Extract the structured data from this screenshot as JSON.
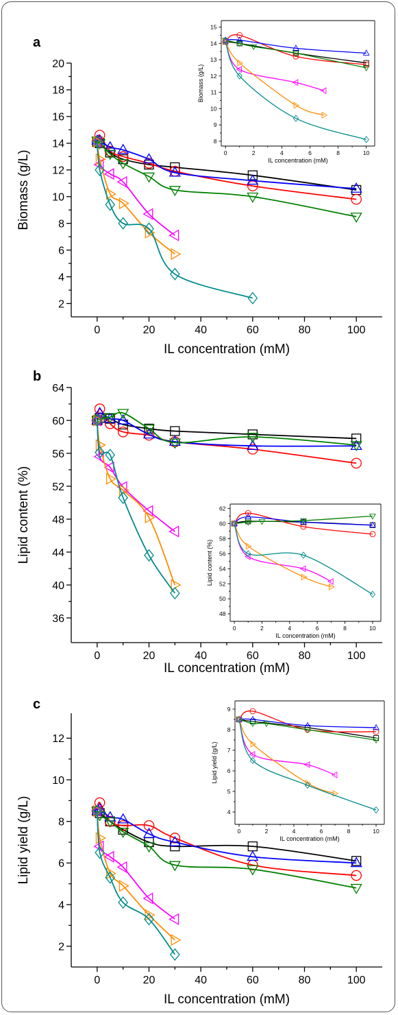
{
  "figure": {
    "panel_labels": [
      "a",
      "b",
      "c"
    ]
  },
  "chart_data": [
    {
      "type": "line",
      "panel": "a",
      "xlabel": "IL concentration (mM)",
      "ylabel": "Biomass (g/L)",
      "xlim": [
        -10,
        110
      ],
      "ylim": [
        1,
        20
      ],
      "xticks": [
        0,
        20,
        40,
        60,
        80,
        100
      ],
      "yticks": [
        2,
        4,
        6,
        8,
        10,
        12,
        14,
        16,
        18,
        20
      ],
      "series": [
        {
          "color": "#000000",
          "marker": "square",
          "x": [
            0,
            1,
            5,
            10,
            20,
            30,
            60,
            100
          ],
          "y": [
            14.1,
            14.0,
            13.3,
            12.8,
            12.4,
            12.2,
            11.6,
            10.5
          ]
        },
        {
          "color": "#ff0000",
          "marker": "circle",
          "x": [
            0,
            1,
            5,
            10,
            20,
            30,
            60,
            100
          ],
          "y": [
            14.1,
            14.6,
            13.4,
            13.0,
            12.5,
            11.9,
            10.8,
            9.8
          ]
        },
        {
          "color": "#0000ff",
          "marker": "triangle-up",
          "x": [
            0,
            1,
            5,
            10,
            20,
            30,
            60,
            100
          ],
          "y": [
            14.2,
            14.2,
            13.7,
            13.5,
            12.8,
            11.8,
            11.2,
            10.6
          ]
        },
        {
          "color": "#008000",
          "marker": "triangle-down",
          "x": [
            0,
            1,
            5,
            10,
            20,
            30,
            60,
            100
          ],
          "y": [
            14.2,
            14.0,
            13.2,
            12.5,
            11.5,
            10.5,
            10.0,
            8.5
          ]
        },
        {
          "color": "#ff00ff",
          "marker": "triangle-left",
          "x": [
            0,
            1,
            5,
            10,
            20,
            30
          ],
          "y": [
            14.1,
            12.4,
            11.7,
            11.1,
            8.7,
            7.1
          ]
        },
        {
          "color": "#ff8c00",
          "marker": "triangle-right",
          "x": [
            0,
            1,
            5,
            10,
            20,
            30
          ],
          "y": [
            14.1,
            12.8,
            10.2,
            9.5,
            7.3,
            5.7
          ]
        },
        {
          "color": "#008b8b",
          "marker": "diamond",
          "x": [
            0,
            1,
            5,
            10,
            20,
            30,
            60
          ],
          "y": [
            14.1,
            12.0,
            9.4,
            8.0,
            7.6,
            4.2,
            2.4
          ]
        }
      ],
      "inset": {
        "xlabel": "IL concentration (mM)",
        "ylabel": "Biomass (g/L)",
        "xlim": [
          -0.3,
          10.6
        ],
        "ylim": [
          7.7,
          15.4
        ],
        "xticks": [
          0,
          2,
          4,
          6,
          8,
          10
        ],
        "yticks": [
          8,
          9,
          10,
          11,
          12,
          13,
          14,
          15
        ],
        "series": [
          {
            "color": "#000000",
            "marker": "square",
            "x": [
              0,
              1,
              5,
              10
            ],
            "y": [
              14.1,
              14.0,
              13.4,
              12.8
            ]
          },
          {
            "color": "#ff0000",
            "marker": "circle",
            "x": [
              0,
              1,
              5,
              10
            ],
            "y": [
              14.1,
              14.5,
              13.2,
              12.7
            ]
          },
          {
            "color": "#0000ff",
            "marker": "triangle-up",
            "x": [
              0,
              1,
              5,
              10
            ],
            "y": [
              14.2,
              14.2,
              13.7,
              13.4
            ]
          },
          {
            "color": "#008000",
            "marker": "triangle-down",
            "x": [
              0,
              1,
              2,
              5,
              10
            ],
            "y": [
              14.2,
              14.0,
              13.8,
              13.4,
              12.5
            ]
          },
          {
            "color": "#ff00ff",
            "marker": "triangle-left",
            "x": [
              0,
              1,
              5,
              7
            ],
            "y": [
              14.1,
              12.4,
              11.6,
              11.1
            ]
          },
          {
            "color": "#ff8c00",
            "marker": "triangle-right",
            "x": [
              0,
              1,
              5,
              7
            ],
            "y": [
              14.1,
              12.8,
              10.2,
              9.6
            ]
          },
          {
            "color": "#008b8b",
            "marker": "diamond",
            "x": [
              0,
              1,
              5,
              10
            ],
            "y": [
              14.1,
              12.0,
              9.4,
              8.1
            ]
          }
        ]
      }
    },
    {
      "type": "line",
      "panel": "b",
      "xlabel": "IL concentration (mM)",
      "ylabel": "Lipid content (%)",
      "xlim": [
        -10,
        110
      ],
      "ylim": [
        33,
        64
      ],
      "xticks": [
        0,
        20,
        40,
        60,
        80,
        100
      ],
      "yticks": [
        36,
        40,
        44,
        48,
        52,
        56,
        60,
        64
      ],
      "series": [
        {
          "color": "#000000",
          "marker": "square",
          "x": [
            0,
            1,
            5,
            10,
            20,
            30,
            60,
            100
          ],
          "y": [
            60.0,
            60.3,
            60.2,
            59.5,
            59.0,
            58.7,
            58.3,
            57.8
          ]
        },
        {
          "color": "#ff0000",
          "marker": "circle",
          "x": [
            0,
            1,
            5,
            10,
            20,
            30,
            60,
            100
          ],
          "y": [
            60.0,
            61.4,
            59.6,
            58.6,
            58.2,
            57.4,
            56.5,
            54.8
          ]
        },
        {
          "color": "#0000ff",
          "marker": "triangle-up",
          "x": [
            0,
            1,
            5,
            10,
            20,
            30,
            60,
            100
          ],
          "y": [
            60.0,
            60.9,
            60.2,
            60.0,
            58.3,
            57.4,
            56.9,
            56.9
          ]
        },
        {
          "color": "#008000",
          "marker": "triangle-down",
          "x": [
            0,
            1,
            5,
            10,
            20,
            30,
            60,
            100
          ],
          "y": [
            60.0,
            60.2,
            60.4,
            60.9,
            59.0,
            57.3,
            58.0,
            57.0
          ]
        },
        {
          "color": "#ff00ff",
          "marker": "triangle-left",
          "x": [
            0,
            1,
            5,
            10,
            20,
            30
          ],
          "y": [
            60.0,
            55.6,
            54.3,
            51.9,
            49.0,
            46.5
          ]
        },
        {
          "color": "#ff8c00",
          "marker": "triangle-right",
          "x": [
            0,
            1,
            5,
            10,
            20,
            30
          ],
          "y": [
            60.0,
            57.0,
            52.9,
            51.5,
            48.2,
            40.0
          ]
        },
        {
          "color": "#008b8b",
          "marker": "diamond",
          "x": [
            0,
            1,
            5,
            10,
            20,
            30
          ],
          "y": [
            60.0,
            56.1,
            55.8,
            50.6,
            43.6,
            39.0
          ]
        }
      ],
      "inset": {
        "xlabel": "IL concentration (mM)",
        "ylabel": "Lipid content (%)",
        "xlim": [
          -0.3,
          10.6
        ],
        "ylim": [
          47,
          62.6
        ],
        "xticks": [
          0,
          2,
          4,
          6,
          8,
          10
        ],
        "yticks": [
          48,
          50,
          52,
          54,
          56,
          58,
          60,
          62
        ],
        "series": [
          {
            "color": "#000000",
            "marker": "square",
            "x": [
              0,
              1,
              5,
              10
            ],
            "y": [
              60.0,
              60.3,
              60.2,
              59.8
            ]
          },
          {
            "color": "#ff0000",
            "marker": "circle",
            "x": [
              0,
              1,
              5,
              10
            ],
            "y": [
              60.0,
              61.4,
              59.6,
              58.6
            ]
          },
          {
            "color": "#0000ff",
            "marker": "triangle-up",
            "x": [
              0,
              1,
              5,
              10
            ],
            "y": [
              60.0,
              60.9,
              60.2,
              59.8
            ]
          },
          {
            "color": "#008000",
            "marker": "triangle-down",
            "x": [
              0,
              1,
              2,
              5,
              10
            ],
            "y": [
              60.0,
              60.2,
              60.3,
              60.4,
              61.0
            ]
          },
          {
            "color": "#ff00ff",
            "marker": "triangle-left",
            "x": [
              0,
              1,
              5,
              7
            ],
            "y": [
              60.0,
              55.6,
              54.0,
              52.3
            ]
          },
          {
            "color": "#ff8c00",
            "marker": "triangle-right",
            "x": [
              0,
              1,
              5,
              7
            ],
            "y": [
              60.0,
              57.0,
              52.9,
              51.6
            ]
          },
          {
            "color": "#008b8b",
            "marker": "diamond",
            "x": [
              0,
              1,
              5,
              10
            ],
            "y": [
              60.0,
              56.0,
              55.8,
              50.6
            ]
          }
        ]
      }
    },
    {
      "type": "line",
      "panel": "c",
      "xlabel": "IL concentration (mM)",
      "ylabel": "Lipid yield (g/L)",
      "xlim": [
        -10,
        110
      ],
      "ylim": [
        1.0,
        13.2
      ],
      "xticks": [
        0,
        20,
        40,
        60,
        80,
        100
      ],
      "yticks": [
        2,
        4,
        6,
        8,
        10,
        12
      ],
      "series": [
        {
          "color": "#000000",
          "marker": "square",
          "x": [
            0,
            1,
            5,
            10,
            20,
            30,
            60,
            100
          ],
          "y": [
            8.5,
            8.4,
            8.0,
            7.6,
            7.0,
            6.8,
            6.8,
            6.1
          ]
        },
        {
          "color": "#ff0000",
          "marker": "circle",
          "x": [
            0,
            1,
            5,
            10,
            20,
            30,
            60,
            100
          ],
          "y": [
            8.5,
            8.9,
            8.0,
            7.8,
            7.8,
            7.2,
            5.9,
            5.4
          ]
        },
        {
          "color": "#0000ff",
          "marker": "triangle-up",
          "x": [
            0,
            1,
            5,
            10,
            20,
            30,
            60,
            100
          ],
          "y": [
            8.5,
            8.6,
            8.2,
            8.1,
            7.4,
            7.0,
            6.3,
            6.0
          ]
        },
        {
          "color": "#008000",
          "marker": "triangle-down",
          "x": [
            0,
            1,
            5,
            10,
            20,
            30,
            60,
            100
          ],
          "y": [
            8.5,
            8.3,
            8.0,
            7.5,
            6.8,
            5.9,
            5.7,
            4.8
          ]
        },
        {
          "color": "#ff00ff",
          "marker": "triangle-left",
          "x": [
            0,
            1,
            5,
            10,
            20,
            30
          ],
          "y": [
            8.5,
            6.8,
            6.3,
            5.8,
            4.3,
            3.3
          ]
        },
        {
          "color": "#ff8c00",
          "marker": "triangle-right",
          "x": [
            0,
            1,
            5,
            10,
            20,
            30
          ],
          "y": [
            8.5,
            7.2,
            5.5,
            4.9,
            3.5,
            2.3
          ]
        },
        {
          "color": "#008b8b",
          "marker": "diamond",
          "x": [
            0,
            1,
            5,
            10,
            20,
            30
          ],
          "y": [
            8.5,
            6.5,
            5.3,
            4.1,
            3.3,
            1.6
          ]
        }
      ],
      "inset": {
        "xlabel": "IL concentration (mM)",
        "ylabel": "Lipid yield (g/L)",
        "xlim": [
          -0.3,
          10.6
        ],
        "ylim": [
          3.4,
          9.4
        ],
        "xticks": [
          0,
          2,
          4,
          6,
          8,
          10
        ],
        "yticks": [
          4,
          5,
          6,
          7,
          8,
          9
        ],
        "series": [
          {
            "color": "#000000",
            "marker": "square",
            "x": [
              0,
              1,
              5,
              10
            ],
            "y": [
              8.5,
              8.4,
              8.1,
              7.6
            ]
          },
          {
            "color": "#ff0000",
            "marker": "circle",
            "x": [
              0,
              1,
              5,
              10
            ],
            "y": [
              8.5,
              8.9,
              8.0,
              7.9
            ]
          },
          {
            "color": "#0000ff",
            "marker": "triangle-up",
            "x": [
              0,
              1,
              5,
              10
            ],
            "y": [
              8.5,
              8.5,
              8.2,
              8.1
            ]
          },
          {
            "color": "#008000",
            "marker": "triangle-down",
            "x": [
              0,
              1,
              2,
              5,
              10
            ],
            "y": [
              8.5,
              8.3,
              8.3,
              8.0,
              7.5
            ]
          },
          {
            "color": "#ff00ff",
            "marker": "triangle-left",
            "x": [
              0,
              1,
              5,
              7
            ],
            "y": [
              8.5,
              6.8,
              6.3,
              5.8
            ]
          },
          {
            "color": "#ff8c00",
            "marker": "triangle-right",
            "x": [
              0,
              1,
              5,
              7
            ],
            "y": [
              8.5,
              7.3,
              5.4,
              4.9
            ]
          },
          {
            "color": "#008b8b",
            "marker": "diamond",
            "x": [
              0,
              1,
              5,
              10
            ],
            "y": [
              8.5,
              6.5,
              5.3,
              4.1
            ]
          }
        ]
      }
    }
  ]
}
